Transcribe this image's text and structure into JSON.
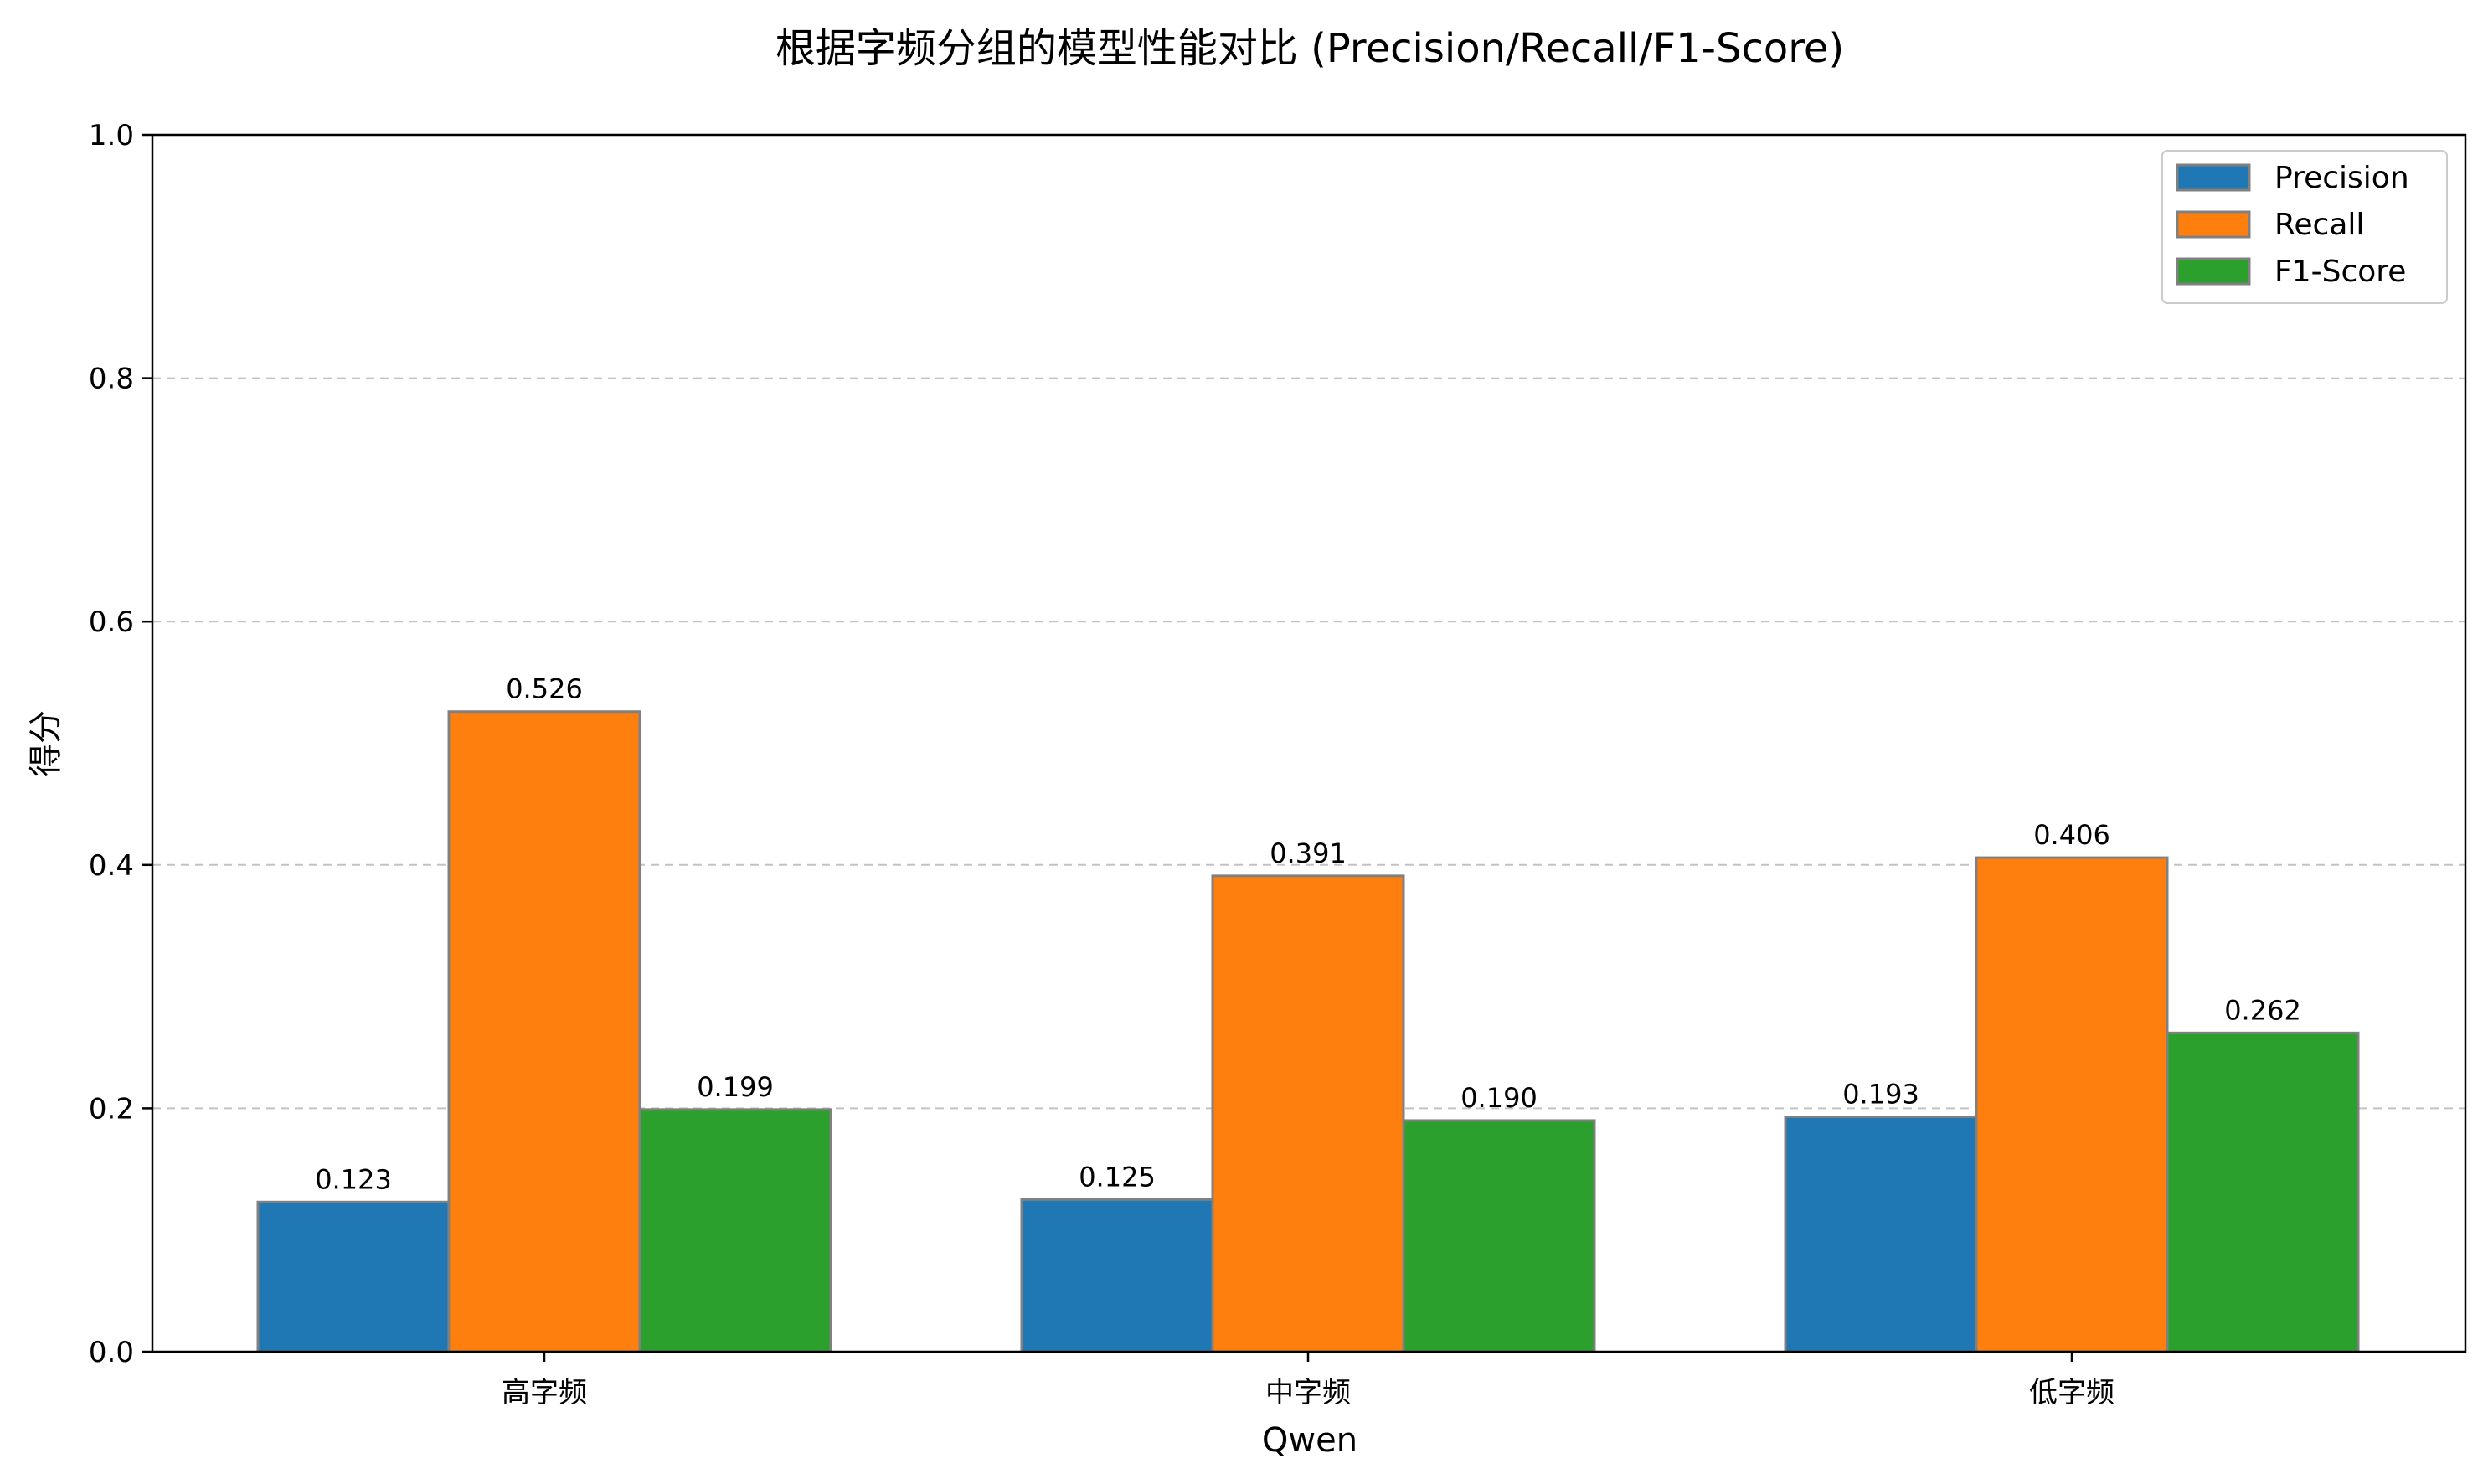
{
  "chart_data": {
    "type": "bar",
    "title": "根据字频分组的模型性能对比 (Precision/Recall/F1-Score)",
    "xlabel": "Qwen",
    "ylabel": "得分",
    "ylim": [
      0,
      1.0
    ],
    "yticks": [
      "0.0",
      "0.2",
      "0.4",
      "0.6",
      "0.8",
      "1.0"
    ],
    "ytick_values": [
      0,
      0.2,
      0.4,
      0.6,
      0.8,
      1.0
    ],
    "grid": true,
    "legend_position": "top-right",
    "categories": [
      "高字频",
      "中字频",
      "低字频"
    ],
    "series": [
      {
        "name": "Precision",
        "color": "#1f77b4",
        "values": [
          0.123,
          0.125,
          0.193
        ],
        "labels": [
          "0.123",
          "0.125",
          "0.193"
        ]
      },
      {
        "name": "Recall",
        "color": "#ff7f0e",
        "values": [
          0.526,
          0.391,
          0.406
        ],
        "labels": [
          "0.526",
          "0.391",
          "0.406"
        ]
      },
      {
        "name": "F1-Score",
        "color": "#2ca02c",
        "values": [
          0.199,
          0.19,
          0.262
        ],
        "labels": [
          "0.199",
          "0.190",
          "0.262"
        ]
      }
    ]
  }
}
